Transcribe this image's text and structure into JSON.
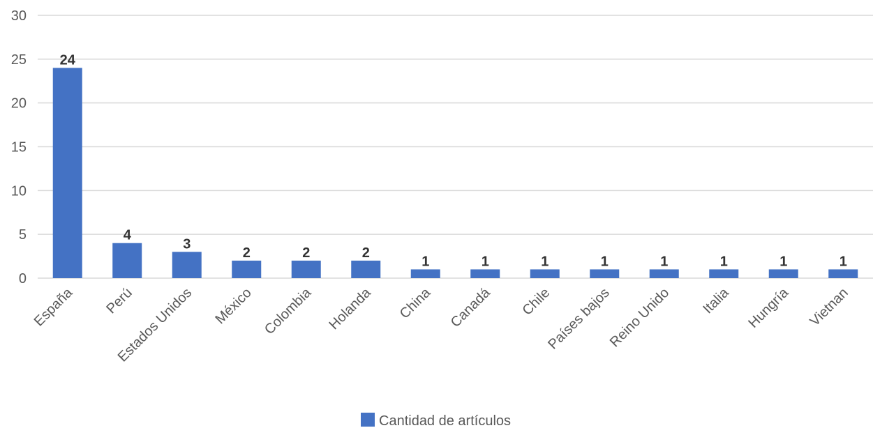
{
  "chart_data": {
    "type": "bar",
    "categories": [
      "España",
      "Perú",
      "Estados Unidos",
      "México",
      "Colombia",
      "Holanda",
      "China",
      "Canadá",
      "Chile",
      "Países bajos",
      "Reino Unido",
      "Italia",
      "Hungría",
      "Vietnan"
    ],
    "series": [
      {
        "name": "Cantidad de artículos",
        "values": [
          24,
          4,
          3,
          2,
          2,
          2,
          1,
          1,
          1,
          1,
          1,
          1,
          1,
          1
        ],
        "color": "#4472c4"
      }
    ],
    "title": "",
    "xlabel": "",
    "ylabel": "",
    "ylim": [
      0,
      30
    ],
    "yticks": [
      0,
      5,
      10,
      15,
      20,
      25,
      30
    ],
    "grid": true,
    "legend_position": "bottom",
    "data_labels": true
  }
}
